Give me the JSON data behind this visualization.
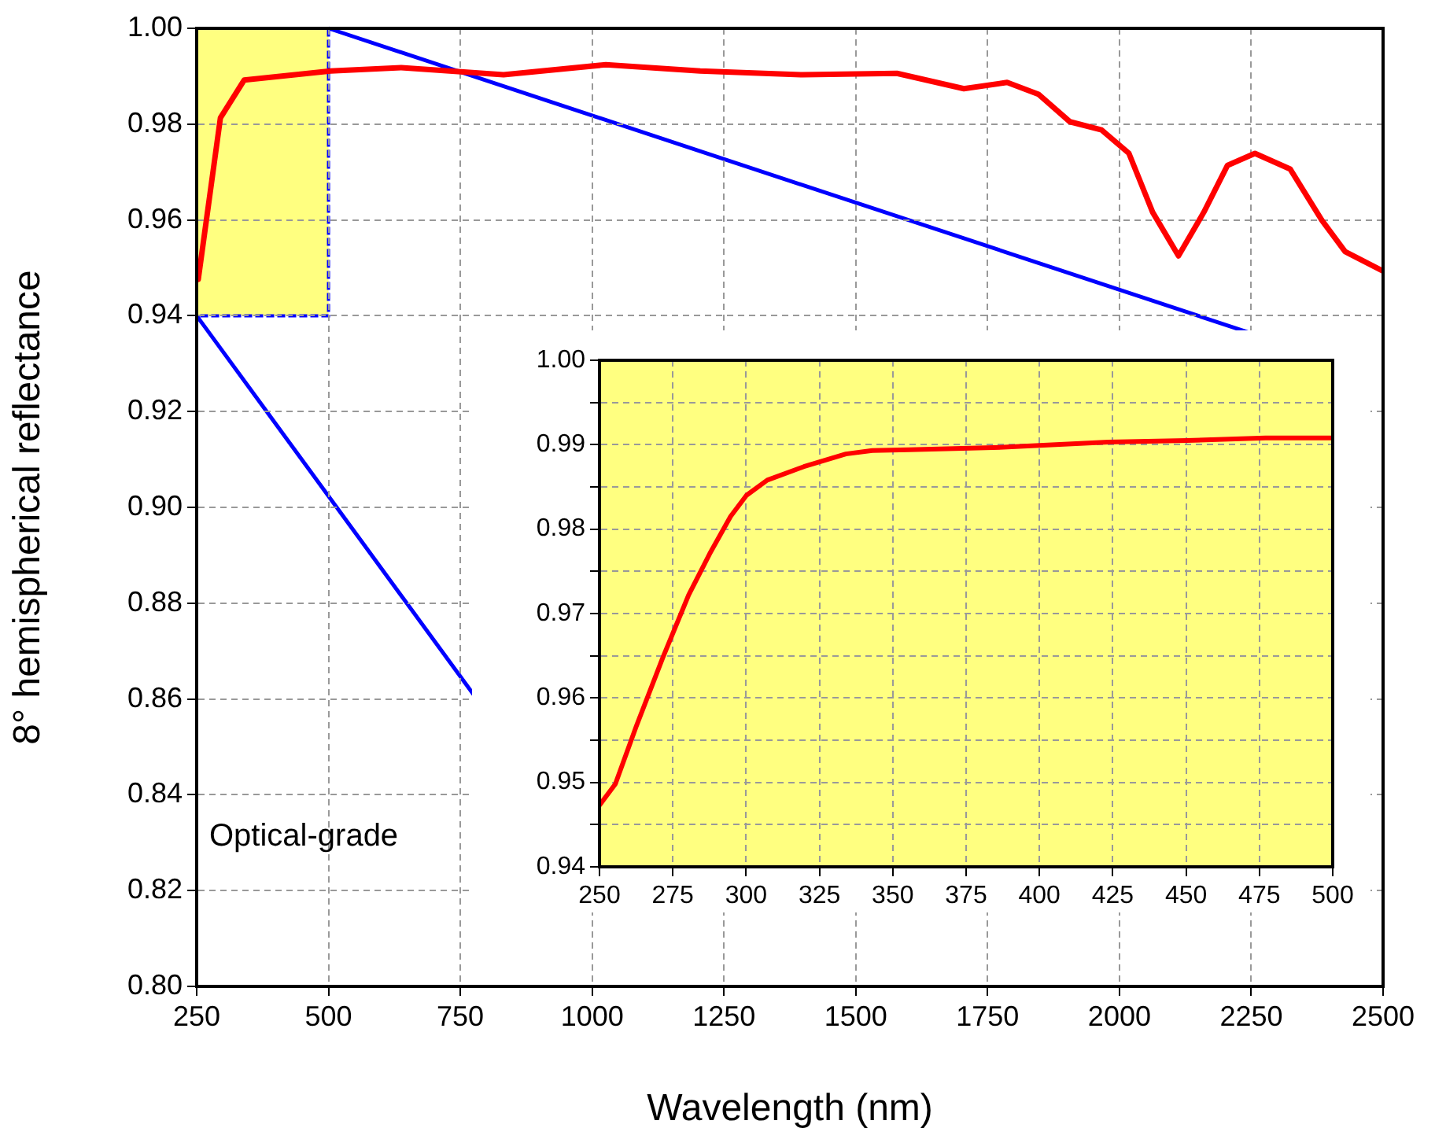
{
  "chart_data": [
    {
      "type": "line",
      "xlabel": "Wavelength (nm)",
      "ylabel": "8° hemispherical reflectance",
      "xlim": [
        250,
        2500
      ],
      "xticks": [
        250,
        500,
        750,
        1000,
        1250,
        1500,
        1750,
        2000,
        2250,
        2500
      ],
      "ylim": [
        0.8,
        1
      ],
      "yticks": [
        {
          "value": 0.8,
          "label": "0.80"
        },
        0.82,
        0.84,
        0.86,
        0.88,
        {
          "value": 0.9,
          "label": "0.90"
        },
        0.92,
        0.94,
        0.96,
        0.98,
        {
          "value": 1,
          "label": "1.00"
        }
      ],
      "grid": true,
      "annotations": [
        "Optical-grade"
      ],
      "series": [
        {
          "color": "#ff0000",
          "x": [
            253,
            295,
            340,
            504,
            638,
            832,
            1026,
            1205,
            1399,
            1578,
            1705,
            1787,
            1847,
            1906,
            1966,
            2018,
            2063,
            2112,
            2160,
            2205,
            2257,
            2324,
            2384,
            2428,
            2500
          ],
          "values": [
            0.9476,
            0.9813,
            0.9892,
            0.9911,
            0.9918,
            0.9903,
            0.9924,
            0.9911,
            0.9903,
            0.9906,
            0.9874,
            0.9887,
            0.9862,
            0.9805,
            0.9788,
            0.9739,
            0.9616,
            0.9525,
            0.9616,
            0.9714,
            0.9739,
            0.9706,
            0.9599,
            0.9534,
            0.9493
          ]
        }
      ]
    },
    {
      "type": "line",
      "xlim": [
        250,
        500
      ],
      "xticks": [
        250,
        275,
        300,
        325,
        350,
        375,
        400,
        425,
        450,
        475,
        500
      ],
      "ylim": [
        0.94,
        1
      ],
      "yticks": [
        0.94,
        {
          "value": 0.945,
          "label": null
        },
        0.95,
        {
          "value": 0.955,
          "label": null
        },
        0.96,
        {
          "value": 0.965,
          "label": null
        },
        0.97,
        {
          "value": 0.975,
          "label": null
        },
        0.98,
        {
          "value": 0.985,
          "label": null
        },
        0.99,
        {
          "value": 0.995,
          "label": null
        },
        {
          "value": 1,
          "label": "1.00"
        }
      ],
      "grid": true,
      "series": [
        {
          "color": "#ff0000",
          "x": [
            250,
            255.4,
            262.5,
            271.5,
            280.4,
            287.6,
            294.7,
            300.1,
            307.2,
            319.7,
            334,
            343,
            355.5,
            387.7,
            423.5,
            450.3,
            477.1,
            500
          ],
          "values": [
            0.9473,
            0.9498,
            0.9566,
            0.9647,
            0.9722,
            0.9771,
            0.9815,
            0.984,
            0.9858,
            0.9874,
            0.9889,
            0.9893,
            0.9894,
            0.9897,
            0.9903,
            0.9905,
            0.9908,
            0.9908
          ]
        }
      ]
    }
  ]
}
